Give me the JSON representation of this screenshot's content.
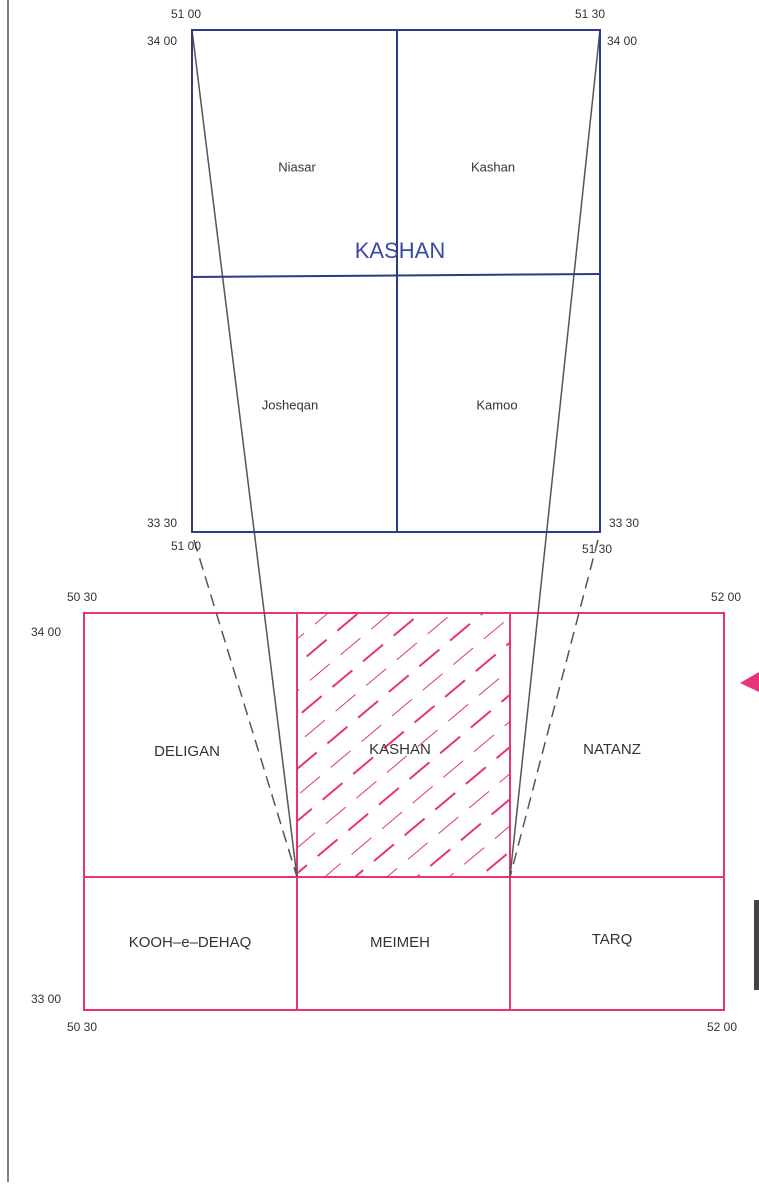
{
  "detail_sheet": {
    "title": "KASHAN",
    "cells": [
      "Niasar",
      "Kashan",
      "Josheqan",
      "Kamoo"
    ],
    "corners": {
      "top_left_lon": "51 00",
      "top_left_lat": "34 00",
      "top_right_lon": "51 30",
      "top_right_lat": "34 00",
      "bottom_left_lat": "33 30",
      "bottom_left_lon": "51 00",
      "bottom_right_lat": "33 30",
      "bottom_right_lon": "51 30"
    }
  },
  "index_grid": {
    "cells": [
      "DELIGAN",
      "KASHAN",
      "NATANZ",
      "KOOH–e–DEHAQ",
      "MEIMEH",
      "TARQ"
    ],
    "corners": {
      "top_left_lon": "50 30",
      "top_left_lat": "34 00",
      "top_right_lon": "52 00",
      "bottom_left_lat": "33 00",
      "bottom_left_lon": "50 30",
      "bottom_right_lon": "52 00"
    }
  }
}
